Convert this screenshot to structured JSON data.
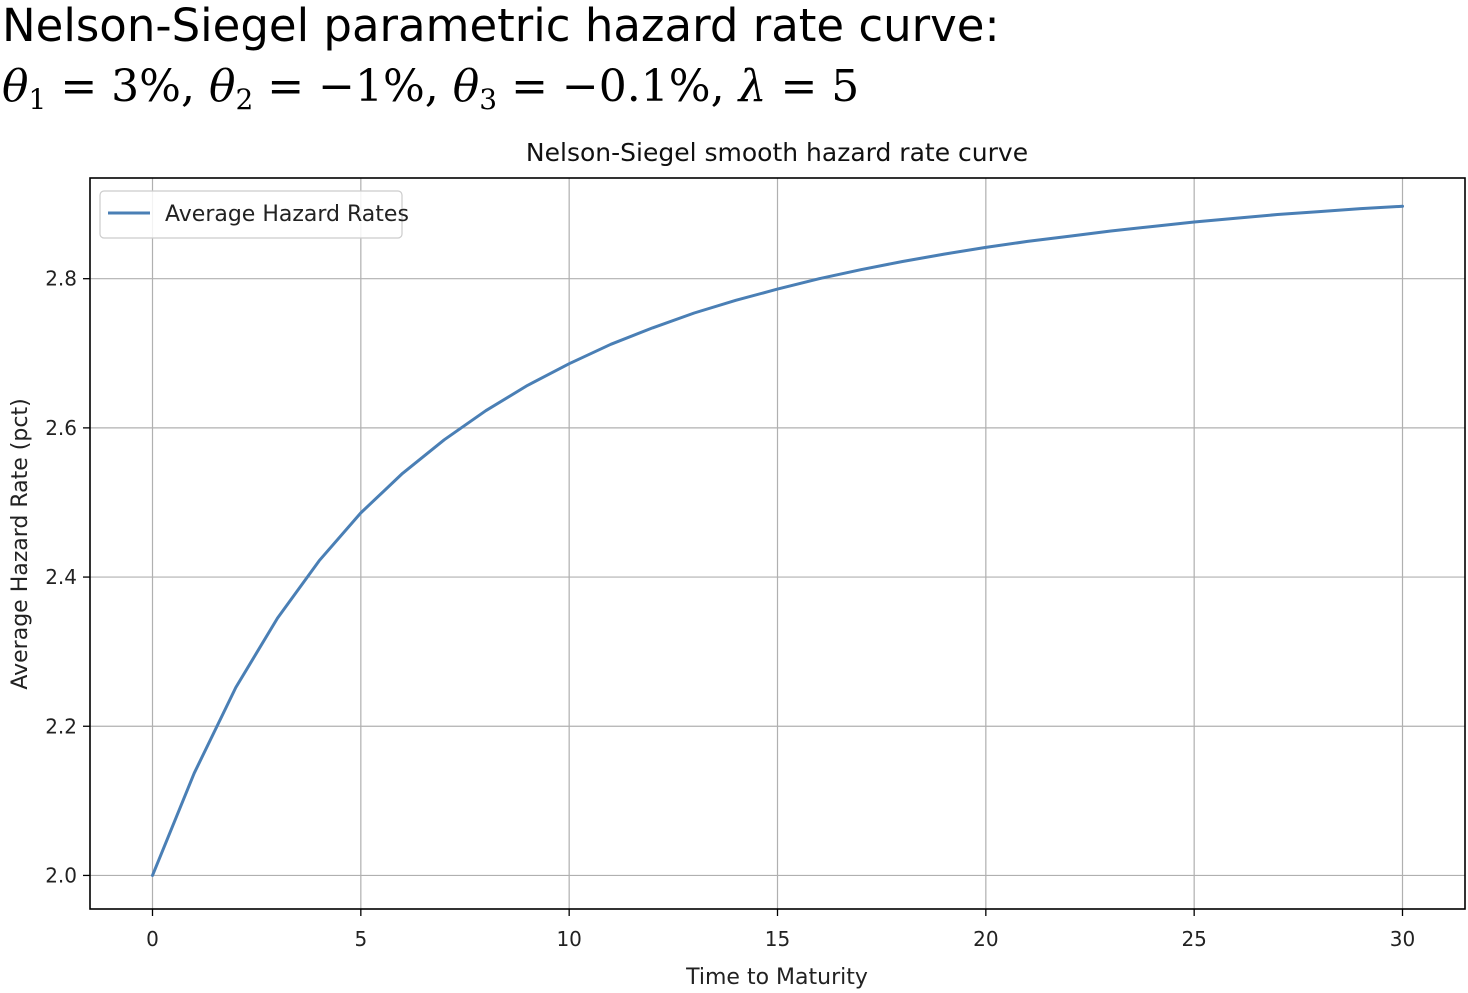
{
  "heading": {
    "line1": "Nelson-Siegel parametric hazard rate curve:",
    "theta1_symbol": "θ",
    "theta1_sub": "1",
    "theta1_value": " = 3%, ",
    "theta2_symbol": "θ",
    "theta2_sub": "2",
    "theta2_value": " = −1%, ",
    "theta3_symbol": "θ",
    "theta3_sub": "3",
    "theta3_value": " = −0.1%, ",
    "lambda_symbol": "λ",
    "lambda_value": " = 5"
  },
  "chart_data": {
    "type": "line",
    "title": "Nelson-Siegel smooth hazard rate curve",
    "xlabel": "Time to Maturity",
    "ylabel": "Average Hazard Rate (pct)",
    "xlim": [
      -1.5,
      31.5
    ],
    "ylim": [
      1.955,
      2.935
    ],
    "xticks": [
      0,
      5,
      10,
      15,
      20,
      25,
      30
    ],
    "yticks": [
      2.0,
      2.2,
      2.4,
      2.6,
      2.8
    ],
    "ytick_labels": [
      "2.0",
      "2.2",
      "2.4",
      "2.6",
      "2.8"
    ],
    "grid": true,
    "legend_position": "upper-left",
    "series": [
      {
        "name": "Average Hazard Rates",
        "color": "#4a7fb5",
        "x": [
          0,
          1,
          2,
          3,
          4,
          5,
          6,
          7,
          8,
          9,
          10,
          11,
          12,
          13,
          14,
          15,
          16,
          17,
          18,
          19,
          20,
          21,
          22,
          23,
          24,
          25,
          26,
          27,
          28,
          29,
          30
        ],
        "y": [
          2.0,
          2.137,
          2.252,
          2.345,
          2.422,
          2.486,
          2.539,
          2.584,
          2.623,
          2.657,
          2.686,
          2.712,
          2.734,
          2.754,
          2.771,
          2.786,
          2.8,
          2.812,
          2.823,
          2.833,
          2.842,
          2.85,
          2.857,
          2.864,
          2.87,
          2.876,
          2.881,
          2.886,
          2.89,
          2.894,
          2.897
        ]
      }
    ]
  }
}
